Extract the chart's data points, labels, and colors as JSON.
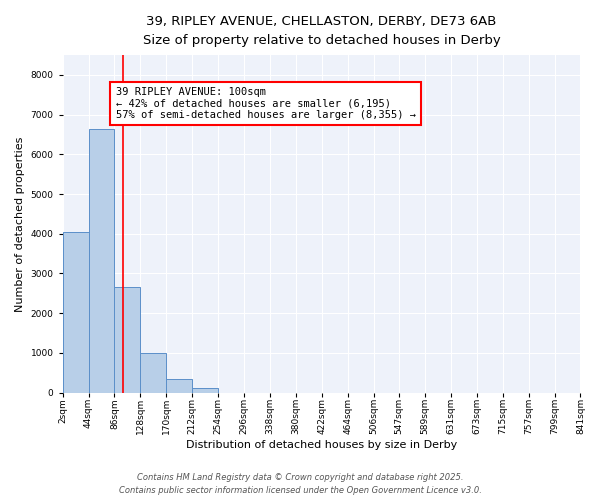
{
  "title_line1": "39, RIPLEY AVENUE, CHELLASTON, DERBY, DE73 6AB",
  "title_line2": "Size of property relative to detached houses in Derby",
  "xlabel": "Distribution of detached houses by size in Derby",
  "ylabel": "Number of detached properties",
  "fig_bg": "#ffffff",
  "plot_bg": "#eef2fa",
  "bar_color": "#b8cfe8",
  "bar_edge_color": "#5b8fc9",
  "grid_color": "#ffffff",
  "bin_edges": [
    2,
    44,
    86,
    128,
    170,
    212,
    254,
    296,
    338,
    380,
    422,
    464,
    506,
    547,
    589,
    631,
    673,
    715,
    757,
    799,
    841
  ],
  "bin_labels": [
    "2sqm",
    "44sqm",
    "86sqm",
    "128sqm",
    "170sqm",
    "212sqm",
    "254sqm",
    "296sqm",
    "338sqm",
    "380sqm",
    "422sqm",
    "464sqm",
    "506sqm",
    "547sqm",
    "589sqm",
    "631sqm",
    "673sqm",
    "715sqm",
    "757sqm",
    "799sqm",
    "841sqm"
  ],
  "bar_heights": [
    4050,
    6650,
    2650,
    1000,
    330,
    110,
    0,
    0,
    0,
    0,
    0,
    0,
    0,
    0,
    0,
    0,
    0,
    0,
    0,
    0
  ],
  "property_label": "39 RIPLEY AVENUE: 100sqm",
  "pct_smaller": 42,
  "pct_smaller_count": "6,195",
  "pct_larger": 57,
  "pct_larger_count": "8,355",
  "vline_x": 100,
  "ylim_max": 8500,
  "yticks": [
    0,
    1000,
    2000,
    3000,
    4000,
    5000,
    6000,
    7000,
    8000
  ],
  "footer_line1": "Contains HM Land Registry data © Crown copyright and database right 2025.",
  "footer_line2": "Contains public sector information licensed under the Open Government Licence v3.0.",
  "title_fontsize": 9.5,
  "subtitle_fontsize": 8.5,
  "axis_label_fontsize": 8,
  "tick_fontsize": 6.5,
  "annotation_fontsize": 7.5,
  "footer_fontsize": 6
}
